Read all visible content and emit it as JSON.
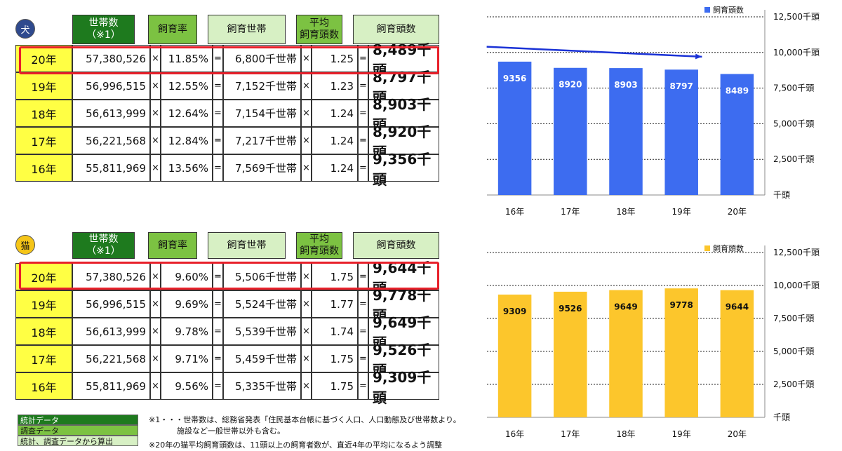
{
  "dog_section": {
    "badge": "犬",
    "headers": {
      "households": "世帯数\n（※1）",
      "rate": "飼育率",
      "owners": "飼育世帯",
      "avg": "平均\n飼育頭数",
      "total": "飼育頭数"
    },
    "rows": [
      {
        "year": "20年",
        "households": "57,380,526",
        "rate": "11.85%",
        "owners": "6,800千世帯",
        "avg": "1.25",
        "total": "8,489千頭"
      },
      {
        "year": "19年",
        "households": "56,996,515",
        "rate": "12.55%",
        "owners": "7,152千世帯",
        "avg": "1.23",
        "total": "8,797千頭"
      },
      {
        "year": "18年",
        "households": "56,613,999",
        "rate": "12.64%",
        "owners": "7,154千世帯",
        "avg": "1.24",
        "total": "8,903千頭"
      },
      {
        "year": "17年",
        "households": "56,221,568",
        "rate": "12.84%",
        "owners": "7,217千世帯",
        "avg": "1.24",
        "total": "8,920千頭"
      },
      {
        "year": "16年",
        "households": "55,811,969",
        "rate": "13.56%",
        "owners": "7,569千世帯",
        "avg": "1.24",
        "total": "9,356千頭"
      }
    ]
  },
  "cat_section": {
    "badge": "猫",
    "headers": {
      "households": "世帯数\n（※1）",
      "rate": "飼育率",
      "owners": "飼育世帯",
      "avg": "平均\n飼育頭数",
      "total": "飼育頭数"
    },
    "rows": [
      {
        "year": "20年",
        "households": "57,380,526",
        "rate": "9.60%",
        "owners": "5,506千世帯",
        "avg": "1.75",
        "total": "9,644千頭"
      },
      {
        "year": "19年",
        "households": "56,996,515",
        "rate": "9.69%",
        "owners": "5,524千世帯",
        "avg": "1.77",
        "total": "9,778千頭"
      },
      {
        "year": "18年",
        "households": "56,613,999",
        "rate": "9.78%",
        "owners": "5,539千世帯",
        "avg": "1.74",
        "total": "9,649千頭"
      },
      {
        "year": "17年",
        "households": "56,221,568",
        "rate": "9.71%",
        "owners": "5,459千世帯",
        "avg": "1.75",
        "total": "9,526千頭"
      },
      {
        "year": "16年",
        "households": "55,811,969",
        "rate": "9.56%",
        "owners": "5,335千世帯",
        "avg": "1.75",
        "total": "9,309千頭"
      }
    ]
  },
  "operators": {
    "times": "×",
    "equals": "="
  },
  "legend": {
    "stat": "統計データ",
    "survey": "調査データ",
    "calc": "統計、調査データから算出"
  },
  "notes": {
    "note1_line1": "※1・・・世帯数は、総務省発表「住民基本台帳に基づく人口、人口動態及び世帯数より。",
    "note1_line2": "施設など一般世帯以外も含む。",
    "note2": "※20年の猫平均飼育頭数は、11頭以上の飼育者数が、直近4年の平均になるよう調整"
  },
  "colors": {
    "dog_bar": "#3d6cf0",
    "cat_bar": "#fcc62c",
    "highlight": "#e8202a",
    "stat_green": "#1e7a1e",
    "survey_green": "#7cc242",
    "calc_green": "#d7f0c4",
    "year_yellow": "#ffff44"
  },
  "chart_data": [
    {
      "type": "bar",
      "legend": "飼育頭数",
      "legend_position": "top-right",
      "categories": [
        "16年",
        "17年",
        "18年",
        "19年",
        "20年"
      ],
      "values": [
        9356,
        8920,
        8903,
        8797,
        8489
      ],
      "data_labels": [
        "9356",
        "8920",
        "8903",
        "8797",
        "8489"
      ],
      "ylim": [
        0,
        12500
      ],
      "yticks": [
        0,
        2500,
        5000,
        7500,
        10000,
        12500
      ],
      "ytick_labels": [
        "千頭",
        "2,500千頭",
        "5,000千頭",
        "7,500千頭",
        "10,000千頭",
        "12,500千頭"
      ],
      "grid": "horizontal-dashed",
      "annotation": "downward trend arrow",
      "color": "#3d6cf0",
      "label_color": "#ffffff"
    },
    {
      "type": "bar",
      "legend": "飼育頭数",
      "legend_position": "top-right",
      "categories": [
        "16年",
        "17年",
        "18年",
        "19年",
        "20年"
      ],
      "values": [
        9309,
        9526,
        9649,
        9778,
        9644
      ],
      "data_labels": [
        "9309",
        "9526",
        "9649",
        "9778",
        "9644"
      ],
      "ylim": [
        0,
        12500
      ],
      "yticks": [
        0,
        2500,
        5000,
        7500,
        10000,
        12500
      ],
      "ytick_labels": [
        "千頭",
        "2,500千頭",
        "5,000千頭",
        "7,500千頭",
        "10,000千頭",
        "12,500千頭"
      ],
      "grid": "horizontal-dashed",
      "color": "#fcc62c",
      "label_color": "#111111"
    }
  ]
}
